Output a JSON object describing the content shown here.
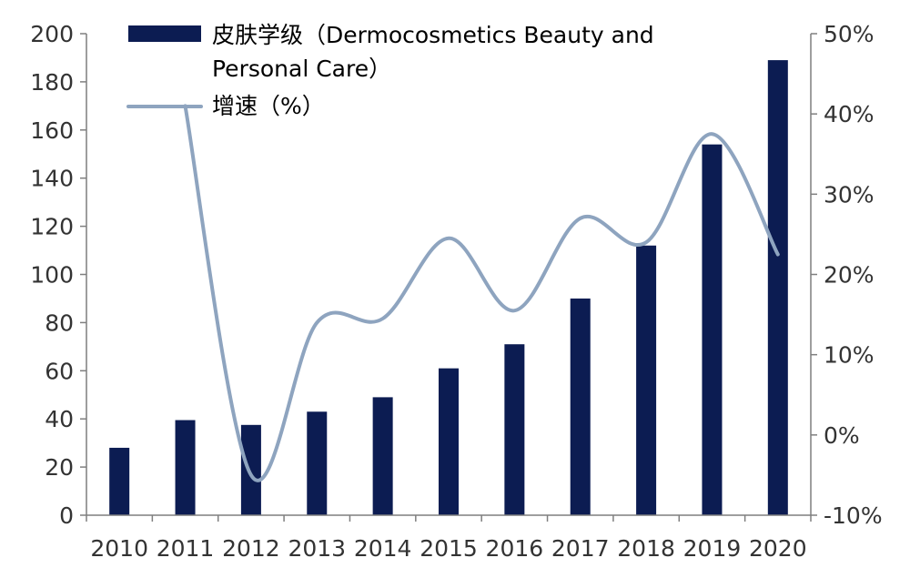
{
  "chart_data": {
    "type": "bar+line",
    "categories": [
      "2010",
      "2011",
      "2012",
      "2013",
      "2014",
      "2015",
      "2016",
      "2017",
      "2018",
      "2019",
      "2020"
    ],
    "series": [
      {
        "name": "皮肤学级（Dermocosmetics Beauty and Personal Care）",
        "legend_lines": [
          "皮肤学级（Dermocosmetics Beauty and",
          "Personal Care）"
        ],
        "type": "bar",
        "axis": "left",
        "color": "#0c1c52",
        "values": [
          28,
          39.5,
          37.5,
          43,
          49,
          61,
          71,
          90,
          112,
          154,
          189
        ]
      },
      {
        "name": "增速（%）",
        "legend_lines": [
          "增速（%）"
        ],
        "type": "line",
        "axis": "right",
        "color": "#8ea4bf",
        "values": [
          null,
          41,
          -5,
          14,
          14.5,
          24.5,
          15.5,
          27,
          24,
          37.5,
          22.5
        ]
      }
    ],
    "y_left": {
      "min": 0,
      "max": 200,
      "step": 20,
      "ticks": [
        "0",
        "20",
        "40",
        "60",
        "80",
        "100",
        "120",
        "140",
        "160",
        "180",
        "200"
      ]
    },
    "y_right": {
      "min": -10,
      "max": 50,
      "step": 10,
      "ticks": [
        "-10%",
        "0%",
        "10%",
        "20%",
        "30%",
        "40%",
        "50%"
      ]
    },
    "grid": false,
    "legend_position": "top-left"
  }
}
